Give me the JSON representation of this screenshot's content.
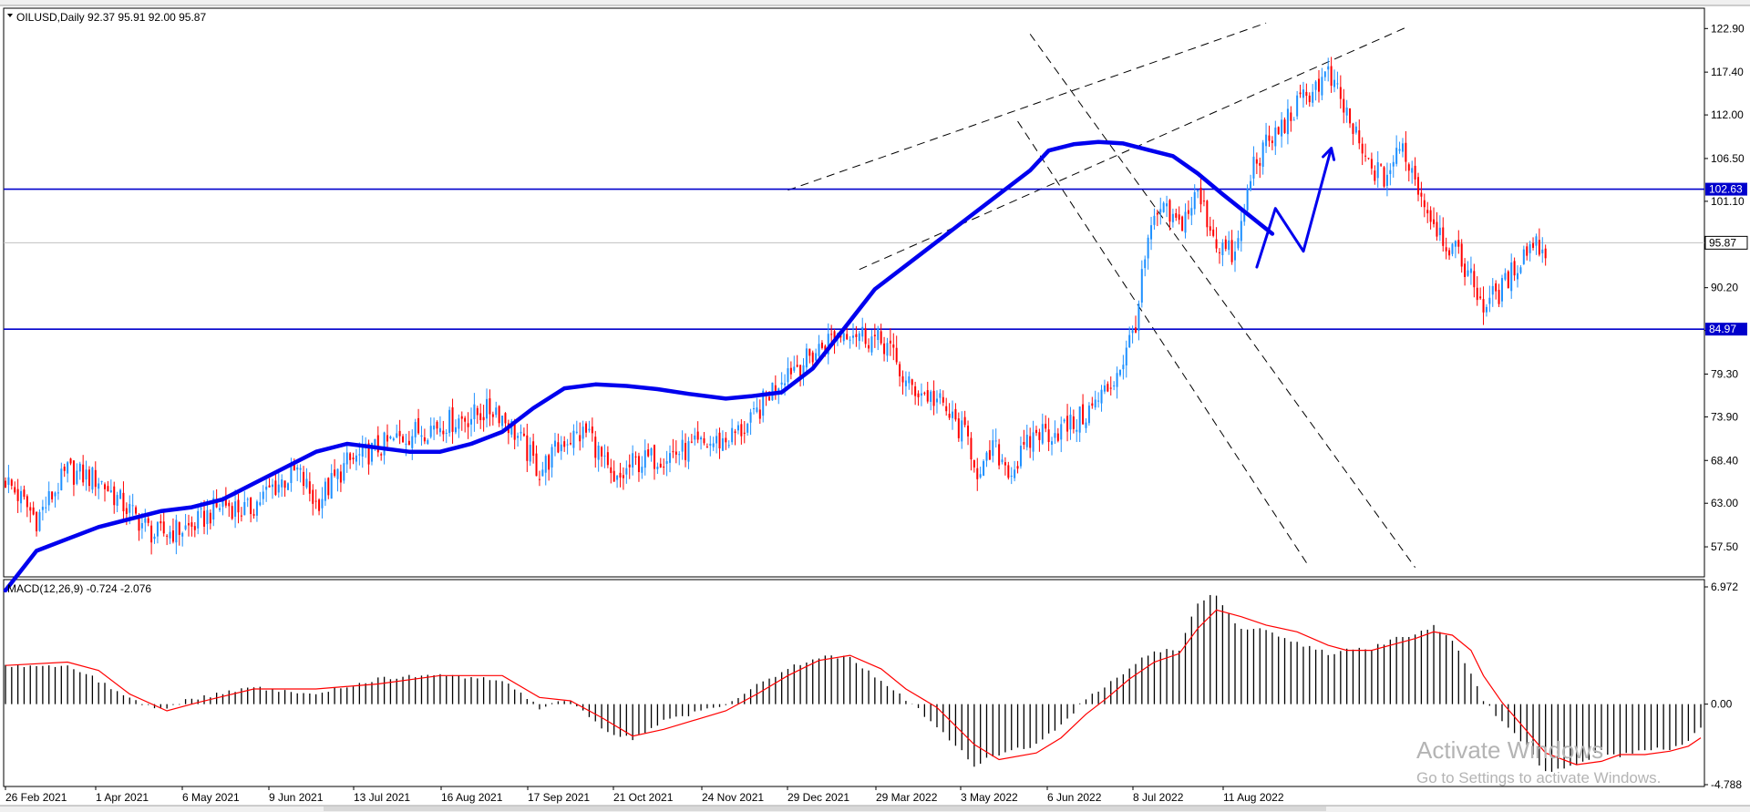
{
  "header": {
    "symbol": "OILUSD,Daily",
    "ohlc": "92.37 95.91 92.00 95.87",
    "macd_label": "MACD(12,26,9) -0.724 -2.076"
  },
  "watermark": {
    "line1": "Activate Windows",
    "line2": "Go to Settings to activate Windows."
  },
  "colors": {
    "bull": "#1e90ff",
    "bear": "#ff0000",
    "ma": "#0000ee",
    "level": "#0000cc",
    "tag_bg": "#0000cc",
    "current": "#c0c0c0",
    "signal": "#ff0000",
    "hist": "#000000"
  },
  "chart_data": {
    "type": "candlestick",
    "price_axis": {
      "min": 54.4,
      "max": 124.2,
      "ticks": [
        "122.90",
        "117.40",
        "112.00",
        "106.50",
        "101.10",
        "95.70",
        "90.20",
        "84.80",
        "79.30",
        "73.90",
        "68.40",
        "63.00",
        "57.50"
      ]
    },
    "date_labels": [
      "26 Feb 2021",
      "1 Apr 2021",
      "6 May 2021",
      "9 Jun 2021",
      "13 Jul 2021",
      "16 Aug 2021",
      "17 Sep 2021",
      "21 Oct 2021",
      "24 Nov 2021",
      "29 Dec 2021",
      "29 Mar 2022",
      "3 May 2022",
      "6 Jun 2022",
      "8 Jul 2022",
      "11 Aug 2022"
    ],
    "horizontal_levels": [
      {
        "value": 102.63,
        "label": "102.63"
      },
      {
        "value": 84.97,
        "label": "84.97"
      }
    ],
    "current_price": {
      "value": 95.87,
      "label": "95.87"
    },
    "close_path": [
      [
        0,
        66
      ],
      [
        10,
        61
      ],
      [
        20,
        67
      ],
      [
        30,
        66
      ],
      [
        40,
        62
      ],
      [
        48,
        59
      ],
      [
        60,
        60
      ],
      [
        70,
        63
      ],
      [
        78,
        62
      ],
      [
        86,
        65
      ],
      [
        94,
        67
      ],
      [
        100,
        63
      ],
      [
        110,
        68
      ],
      [
        120,
        70
      ],
      [
        132,
        72
      ],
      [
        140,
        73
      ],
      [
        150,
        74
      ],
      [
        158,
        75
      ],
      [
        164,
        72
      ],
      [
        172,
        67
      ],
      [
        180,
        71
      ],
      [
        188,
        72
      ],
      [
        196,
        65
      ],
      [
        202,
        68
      ],
      [
        212,
        69
      ],
      [
        222,
        70
      ],
      [
        232,
        71
      ],
      [
        240,
        73
      ],
      [
        246,
        77
      ],
      [
        252,
        80
      ],
      [
        258,
        81
      ],
      [
        266,
        84
      ],
      [
        272,
        85
      ],
      [
        278,
        84
      ],
      [
        284,
        83
      ],
      [
        290,
        78
      ],
      [
        300,
        76
      ],
      [
        310,
        71
      ],
      [
        314,
        66
      ],
      [
        318,
        70
      ],
      [
        324,
        67
      ],
      [
        332,
        72
      ],
      [
        338,
        72
      ],
      [
        344,
        73
      ],
      [
        350,
        75
      ],
      [
        356,
        78
      ],
      [
        361,
        82
      ],
      [
        364,
        86
      ],
      [
        368,
        96
      ],
      [
        372,
        100
      ],
      [
        378,
        98
      ],
      [
        384,
        102
      ],
      [
        390,
        96
      ],
      [
        396,
        94
      ],
      [
        402,
        106
      ],
      [
        408,
        109
      ],
      [
        414,
        112
      ],
      [
        420,
        115
      ],
      [
        426,
        117
      ],
      [
        432,
        112
      ],
      [
        438,
        106
      ],
      [
        444,
        104
      ],
      [
        450,
        108
      ],
      [
        458,
        100
      ],
      [
        464,
        96
      ],
      [
        470,
        93
      ],
      [
        476,
        88
      ],
      [
        482,
        90
      ],
      [
        488,
        94
      ],
      [
        492,
        96
      ],
      [
        496,
        95
      ]
    ],
    "ma_path": [
      [
        0,
        52
      ],
      [
        10,
        57
      ],
      [
        20,
        58.5
      ],
      [
        30,
        60
      ],
      [
        40,
        61
      ],
      [
        50,
        62
      ],
      [
        60,
        62.5
      ],
      [
        70,
        63.5
      ],
      [
        80,
        65.5
      ],
      [
        90,
        67.5
      ],
      [
        100,
        69.5
      ],
      [
        110,
        70.5
      ],
      [
        120,
        70
      ],
      [
        130,
        69.5
      ],
      [
        140,
        69.5
      ],
      [
        150,
        70.5
      ],
      [
        160,
        72
      ],
      [
        170,
        75
      ],
      [
        180,
        77.5
      ],
      [
        190,
        78
      ],
      [
        200,
        77.8
      ],
      [
        210,
        77.4
      ],
      [
        220,
        76.8
      ],
      [
        232,
        76.2
      ],
      [
        240,
        76.5
      ],
      [
        250,
        77
      ],
      [
        260,
        80
      ],
      [
        272,
        86
      ],
      [
        280,
        90
      ],
      [
        290,
        93
      ],
      [
        300,
        96
      ],
      [
        310,
        99
      ],
      [
        320,
        102
      ],
      [
        330,
        105
      ],
      [
        336,
        107.5
      ],
      [
        344,
        108.3
      ],
      [
        352,
        108.6
      ],
      [
        360,
        108.4
      ],
      [
        368,
        107.6
      ],
      [
        376,
        106.8
      ],
      [
        384,
        104.6
      ],
      [
        392,
        102
      ],
      [
        400,
        99.5
      ],
      [
        408,
        97
      ]
    ],
    "channels": [
      {
        "name": "ascending",
        "lines": [
          [
            [
              252,
              102.5
            ],
            [
              406,
              123.6
            ]
          ],
          [
            [
              275,
              92.5
            ],
            [
              452,
              123.2
            ]
          ]
        ]
      },
      {
        "name": "descending",
        "lines": [
          [
            [
              330,
              122.2
            ],
            [
              454,
              54.9
            ]
          ],
          [
            [
              326,
              111.2
            ],
            [
              420,
              54.9
            ]
          ]
        ]
      }
    ],
    "forecast_arrow": [
      [
        403,
        92.8
      ],
      [
        409,
        100.2
      ],
      [
        418,
        94.8
      ],
      [
        427,
        107.8
      ]
    ],
    "macd": {
      "min": -4.788,
      "max": 6.972,
      "ticks": [
        "6.972",
        "0.00",
        "-4.788"
      ],
      "hist_path": [
        [
          0,
          2.3
        ],
        [
          20,
          2.2
        ],
        [
          28,
          1.6
        ],
        [
          40,
          0.3
        ],
        [
          50,
          -0.3
        ],
        [
          60,
          0.3
        ],
        [
          80,
          1.0
        ],
        [
          100,
          0.6
        ],
        [
          120,
          1.5
        ],
        [
          140,
          1.8
        ],
        [
          160,
          1.4
        ],
        [
          165,
          0.7
        ],
        [
          172,
          -0.2
        ],
        [
          182,
          0.3
        ],
        [
          192,
          -1.5
        ],
        [
          202,
          -2.1
        ],
        [
          212,
          -1.0
        ],
        [
          232,
          0.0
        ],
        [
          242,
          1.1
        ],
        [
          252,
          2.1
        ],
        [
          262,
          2.8
        ],
        [
          272,
          2.8
        ],
        [
          282,
          1.4
        ],
        [
          290,
          0.3
        ],
        [
          300,
          -1.3
        ],
        [
          312,
          -3.6
        ],
        [
          320,
          -3.0
        ],
        [
          332,
          -2.4
        ],
        [
          340,
          -1.3
        ],
        [
          348,
          0.4
        ],
        [
          355,
          1.1
        ],
        [
          362,
          2.2
        ],
        [
          370,
          3.1
        ],
        [
          378,
          3.3
        ],
        [
          384,
          6.1
        ],
        [
          390,
          6.5
        ],
        [
          398,
          4.4
        ],
        [
          406,
          4.4
        ],
        [
          416,
          3.6
        ],
        [
          426,
          3.0
        ],
        [
          432,
          3.2
        ],
        [
          440,
          3.3
        ],
        [
          446,
          3.8
        ],
        [
          454,
          4.2
        ],
        [
          460,
          4.6
        ],
        [
          466,
          3.8
        ],
        [
          472,
          1.8
        ],
        [
          476,
          0.2
        ],
        [
          482,
          -1.0
        ],
        [
          490,
          -2.6
        ],
        [
          496,
          -4.0
        ],
        [
          506,
          -3.6
        ],
        [
          514,
          -2.8
        ],
        [
          520,
          -3.1
        ],
        [
          528,
          -2.7
        ],
        [
          536,
          -2.7
        ],
        [
          542,
          -2.1
        ],
        [
          546,
          -1.4
        ]
      ],
      "signal_path": [
        [
          0,
          2.3
        ],
        [
          20,
          2.5
        ],
        [
          30,
          2.0
        ],
        [
          40,
          0.6
        ],
        [
          52,
          -0.4
        ],
        [
          62,
          0.1
        ],
        [
          80,
          0.9
        ],
        [
          100,
          0.9
        ],
        [
          120,
          1.2
        ],
        [
          140,
          1.7
        ],
        [
          160,
          1.7
        ],
        [
          172,
          0.4
        ],
        [
          182,
          0.2
        ],
        [
          192,
          -0.8
        ],
        [
          202,
          -1.9
        ],
        [
          212,
          -1.5
        ],
        [
          232,
          -0.4
        ],
        [
          242,
          0.6
        ],
        [
          252,
          1.7
        ],
        [
          262,
          2.6
        ],
        [
          272,
          2.9
        ],
        [
          282,
          2.1
        ],
        [
          290,
          0.9
        ],
        [
          300,
          -0.2
        ],
        [
          312,
          -2.4
        ],
        [
          320,
          -3.3
        ],
        [
          332,
          -2.9
        ],
        [
          340,
          -2.0
        ],
        [
          348,
          -0.6
        ],
        [
          355,
          0.4
        ],
        [
          362,
          1.5
        ],
        [
          370,
          2.5
        ],
        [
          378,
          3.0
        ],
        [
          384,
          4.5
        ],
        [
          390,
          5.6
        ],
        [
          398,
          5.2
        ],
        [
          406,
          4.7
        ],
        [
          416,
          4.3
        ],
        [
          426,
          3.5
        ],
        [
          432,
          3.2
        ],
        [
          440,
          3.2
        ],
        [
          446,
          3.5
        ],
        [
          454,
          3.9
        ],
        [
          460,
          4.3
        ],
        [
          466,
          4.1
        ],
        [
          472,
          3.2
        ],
        [
          476,
          1.7
        ],
        [
          482,
          0.1
        ],
        [
          490,
          -1.6
        ],
        [
          496,
          -2.9
        ],
        [
          506,
          -3.6
        ],
        [
          514,
          -3.4
        ],
        [
          520,
          -3.0
        ],
        [
          528,
          -3.0
        ],
        [
          536,
          -2.8
        ],
        [
          542,
          -2.5
        ],
        [
          546,
          -2.0
        ]
      ]
    }
  }
}
